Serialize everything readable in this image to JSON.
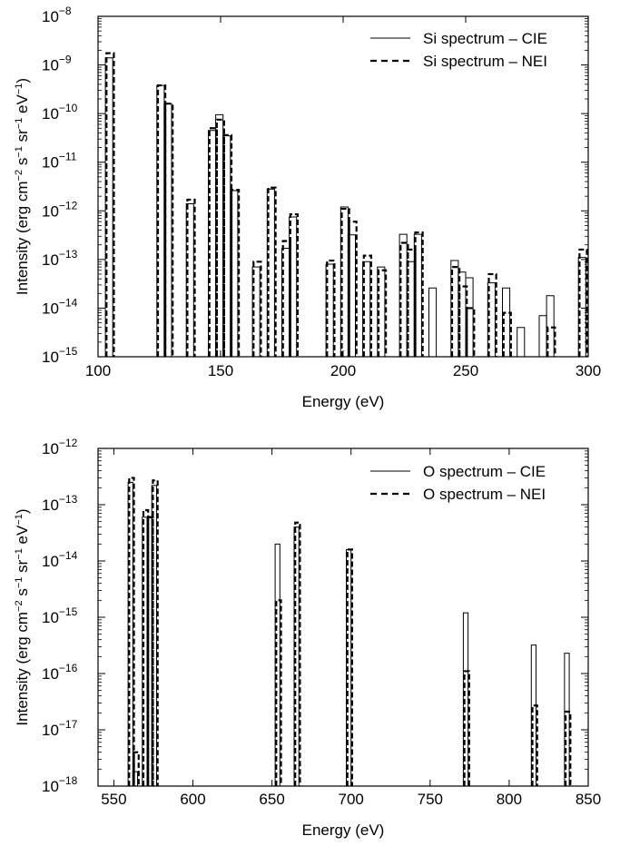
{
  "chart_data": [
    {
      "type": "step",
      "xlabel": "Energy (eV)",
      "ylabel": "Intensity (erg cm",
      "ylabel_parts": [
        "Intensity (erg cm",
        "−2",
        " s",
        "−1",
        " sr",
        "−1",
        " eV",
        "−1",
        ")"
      ],
      "xlim": [
        100,
        300
      ],
      "ylim_exponents": [
        -15,
        -8
      ],
      "yscale": "log",
      "x_ticks": [
        "100",
        "150",
        "200",
        "250",
        "300"
      ],
      "y_ticks": [
        "10",
        "10",
        "10",
        "10",
        "10",
        "10",
        "10",
        "10"
      ],
      "y_tick_exponents": [
        "−15",
        "−14",
        "−13",
        "−12",
        "−11",
        "−10",
        "−9",
        "−8"
      ],
      "legend_position": "top-right",
      "series": [
        {
          "name": "Si spectrum – CIE",
          "style": "solid",
          "bins": [
            {
              "x0": 103,
              "x1": 106,
              "y": 1.4e-09
            },
            {
              "x0": 124,
              "x1": 127,
              "y": 3.8e-10
            },
            {
              "x0": 127,
              "x1": 130,
              "y": 1.6e-10
            },
            {
              "x0": 136,
              "x1": 139,
              "y": 1.4e-12
            },
            {
              "x0": 145,
              "x1": 148,
              "y": 4.5e-11
            },
            {
              "x0": 148,
              "x1": 151,
              "y": 9.5e-11
            },
            {
              "x0": 151,
              "x1": 154,
              "y": 3.5e-11
            },
            {
              "x0": 154,
              "x1": 157,
              "y": 2.6e-12
            },
            {
              "x0": 163,
              "x1": 166,
              "y": 7e-14
            },
            {
              "x0": 169,
              "x1": 172,
              "y": 2.8e-12
            },
            {
              "x0": 175,
              "x1": 178,
              "y": 1.7e-13
            },
            {
              "x0": 178,
              "x1": 181,
              "y": 7.5e-13
            },
            {
              "x0": 193,
              "x1": 196,
              "y": 8e-14
            },
            {
              "x0": 199,
              "x1": 202,
              "y": 1.2e-12
            },
            {
              "x0": 202,
              "x1": 205,
              "y": 3.2e-13
            },
            {
              "x0": 208,
              "x1": 211,
              "y": 9e-14
            },
            {
              "x0": 214,
              "x1": 217,
              "y": 7e-14
            },
            {
              "x0": 223,
              "x1": 226,
              "y": 3.3e-13
            },
            {
              "x0": 226,
              "x1": 229,
              "y": 9e-14
            },
            {
              "x0": 229,
              "x1": 232,
              "y": 3.3e-13
            },
            {
              "x0": 235,
              "x1": 238,
              "y": 2.6e-14
            },
            {
              "x0": 244,
              "x1": 247,
              "y": 9.5e-14
            },
            {
              "x0": 247,
              "x1": 250,
              "y": 5.5e-14
            },
            {
              "x0": 250,
              "x1": 253,
              "y": 4.2e-14
            },
            {
              "x0": 259,
              "x1": 262,
              "y": 3.3e-14
            },
            {
              "x0": 265,
              "x1": 268,
              "y": 2.6e-14
            },
            {
              "x0": 271,
              "x1": 274,
              "y": 4e-15
            },
            {
              "x0": 280,
              "x1": 283,
              "y": 7e-15
            },
            {
              "x0": 283,
              "x1": 286,
              "y": 1.8e-14
            },
            {
              "x0": 296,
              "x1": 299,
              "y": 1.1e-13
            }
          ]
        },
        {
          "name": "Si spectrum – NEI",
          "style": "dashed",
          "bins": [
            {
              "x0": 103,
              "x1": 106,
              "y": 1.75e-09
            },
            {
              "x0": 124,
              "x1": 127,
              "y": 3.8e-10
            },
            {
              "x0": 127,
              "x1": 130,
              "y": 1.6e-10
            },
            {
              "x0": 136,
              "x1": 139,
              "y": 1.7e-12
            },
            {
              "x0": 145,
              "x1": 148,
              "y": 5e-11
            },
            {
              "x0": 148,
              "x1": 151,
              "y": 7.5e-11
            },
            {
              "x0": 151,
              "x1": 154,
              "y": 3.6e-11
            },
            {
              "x0": 154,
              "x1": 157,
              "y": 2.7e-12
            },
            {
              "x0": 163,
              "x1": 166,
              "y": 9e-14
            },
            {
              "x0": 169,
              "x1": 172,
              "y": 3e-12
            },
            {
              "x0": 175,
              "x1": 178,
              "y": 2.4e-13
            },
            {
              "x0": 178,
              "x1": 181,
              "y": 8.5e-13
            },
            {
              "x0": 193,
              "x1": 196,
              "y": 9.5e-14
            },
            {
              "x0": 199,
              "x1": 202,
              "y": 1.1e-12
            },
            {
              "x0": 202,
              "x1": 205,
              "y": 6e-13
            },
            {
              "x0": 208,
              "x1": 211,
              "y": 1.2e-13
            },
            {
              "x0": 214,
              "x1": 217,
              "y": 6e-14
            },
            {
              "x0": 223,
              "x1": 226,
              "y": 2.2e-13
            },
            {
              "x0": 226,
              "x1": 229,
              "y": 1.6e-13
            },
            {
              "x0": 229,
              "x1": 232,
              "y": 3.6e-13
            },
            {
              "x0": 244,
              "x1": 247,
              "y": 7e-14
            },
            {
              "x0": 247,
              "x1": 250,
              "y": 2.8e-14
            },
            {
              "x0": 250,
              "x1": 253,
              "y": 1e-14
            },
            {
              "x0": 259,
              "x1": 262,
              "y": 5e-14
            },
            {
              "x0": 265,
              "x1": 268,
              "y": 8e-15
            },
            {
              "x0": 283,
              "x1": 286,
              "y": 4e-15
            },
            {
              "x0": 296,
              "x1": 299,
              "y": 1.6e-13
            }
          ]
        }
      ]
    },
    {
      "type": "step",
      "xlabel": "Energy (eV)",
      "ylabel": "Intensity (erg cm",
      "ylabel_parts": [
        "Intensity (erg cm",
        "−2",
        " s",
        "−1",
        " sr",
        "−1",
        " eV",
        "−1",
        ")"
      ],
      "xlim": [
        540,
        850
      ],
      "ylim_exponents": [
        -18,
        -12
      ],
      "yscale": "log",
      "x_ticks": [
        "550",
        "600",
        "650",
        "700",
        "750",
        "800",
        "850"
      ],
      "y_ticks": [
        "10",
        "10",
        "10",
        "10",
        "10",
        "10",
        "10"
      ],
      "y_tick_exponents": [
        "−18",
        "−17",
        "−16",
        "−15",
        "−14",
        "−13",
        "−12"
      ],
      "legend_position": "top-right",
      "series": [
        {
          "name": "O spectrum – CIE",
          "style": "solid",
          "bins": [
            {
              "x0": 559,
              "x1": 562,
              "y": 2.5e-13
            },
            {
              "x0": 562,
              "x1": 565,
              "y": 1.8e-18
            },
            {
              "x0": 568,
              "x1": 571,
              "y": 6e-14
            },
            {
              "x0": 571,
              "x1": 574,
              "y": 6e-14
            },
            {
              "x0": 574,
              "x1": 577,
              "y": 2.2e-13
            },
            {
              "x0": 652,
              "x1": 655,
              "y": 2e-14
            },
            {
              "x0": 664,
              "x1": 667,
              "y": 4e-14
            },
            {
              "x0": 697,
              "x1": 700,
              "y": 1.6e-14
            },
            {
              "x0": 771,
              "x1": 774,
              "y": 1.2e-15
            },
            {
              "x0": 814,
              "x1": 817,
              "y": 3.2e-16
            },
            {
              "x0": 835,
              "x1": 838,
              "y": 2.3e-16
            }
          ]
        },
        {
          "name": "O spectrum – NEI",
          "style": "dashed",
          "bins": [
            {
              "x0": 559,
              "x1": 562,
              "y": 3e-13
            },
            {
              "x0": 562,
              "x1": 565,
              "y": 4e-18
            },
            {
              "x0": 568,
              "x1": 571,
              "y": 8e-14
            },
            {
              "x0": 571,
              "x1": 574,
              "y": 6e-14
            },
            {
              "x0": 574,
              "x1": 577,
              "y": 2.7e-13
            },
            {
              "x0": 652,
              "x1": 655,
              "y": 2e-15
            },
            {
              "x0": 664,
              "x1": 667,
              "y": 4.8e-14
            },
            {
              "x0": 697,
              "x1": 700,
              "y": 1.6e-14
            },
            {
              "x0": 771,
              "x1": 774,
              "y": 1.1e-16
            },
            {
              "x0": 814,
              "x1": 817,
              "y": 2.7e-17
            },
            {
              "x0": 835,
              "x1": 838,
              "y": 2.1e-17
            }
          ]
        }
      ]
    }
  ]
}
